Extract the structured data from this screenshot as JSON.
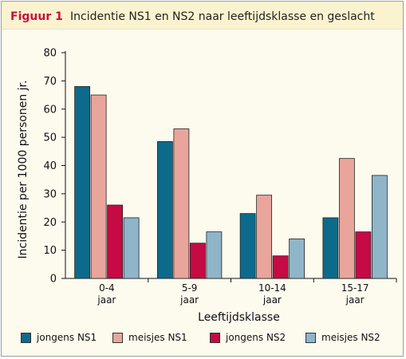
{
  "header": {
    "label": "Figuur 1",
    "title": "Incidentie NS1 en NS2 naar leeftijdsklasse en geslacht"
  },
  "chart_data": {
    "type": "bar",
    "categories": [
      [
        "0-4",
        "jaar"
      ],
      [
        "5-9",
        "jaar"
      ],
      [
        "10-14",
        "jaar"
      ],
      [
        "15-17",
        "jaar"
      ]
    ],
    "series": [
      {
        "name": "jongens NS1",
        "color": "#0e6a8c",
        "values": [
          68,
          48.5,
          23,
          21.5
        ]
      },
      {
        "name": "meisjes NS1",
        "color": "#e9a59c",
        "values": [
          65,
          53,
          29.5,
          42.5
        ]
      },
      {
        "name": "jongens NS2",
        "color": "#c50a44",
        "values": [
          26,
          12.5,
          8,
          16.5
        ]
      },
      {
        "name": "meisjes NS2",
        "color": "#8fb5c9",
        "values": [
          21.5,
          16.5,
          14,
          36.5
        ]
      }
    ],
    "xlabel": "Leeftijdsklasse",
    "ylabel": "Incidentie per 1000 personen jr.",
    "ylim": [
      0,
      80
    ],
    "yticks": [
      0,
      10,
      20,
      30,
      40,
      50,
      60,
      70,
      80
    ],
    "grid": false,
    "legend_position": "bottom"
  }
}
